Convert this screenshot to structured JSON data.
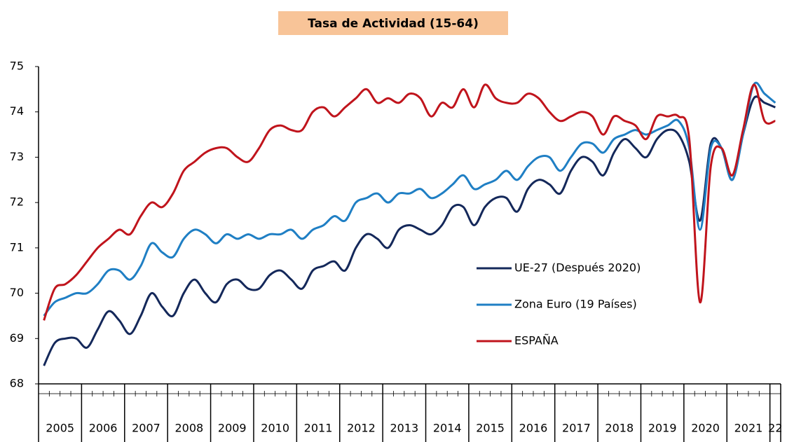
{
  "chart_data": {
    "type": "line",
    "title": "Tasa de Actividad (15-64)",
    "categories": [
      "2005",
      null,
      null,
      null,
      "2006",
      null,
      null,
      null,
      "2007",
      null,
      null,
      null,
      "2008",
      null,
      null,
      null,
      "2009",
      null,
      null,
      null,
      "2010",
      null,
      null,
      null,
      "2011",
      null,
      null,
      null,
      "2012",
      null,
      null,
      null,
      "2013",
      null,
      null,
      null,
      "2014",
      null,
      null,
      null,
      "2015",
      null,
      null,
      null,
      "2016",
      null,
      null,
      null,
      "2017",
      null,
      null,
      null,
      "2018",
      null,
      null,
      null,
      "2019",
      null,
      null,
      null,
      "2020",
      null,
      null,
      null,
      "2021",
      null,
      null,
      null,
      "22"
    ],
    "series": [
      {
        "name": "UE-27 (Después 2020)",
        "color": "#14285a",
        "values": [
          68.4,
          68.9,
          69.0,
          69.0,
          68.8,
          69.2,
          69.6,
          69.4,
          69.1,
          69.5,
          70.0,
          69.7,
          69.5,
          70.0,
          70.3,
          70.0,
          69.8,
          70.2,
          70.3,
          70.1,
          70.1,
          70.4,
          70.5,
          70.3,
          70.1,
          70.5,
          70.6,
          70.7,
          70.5,
          71.0,
          71.3,
          71.2,
          71.0,
          71.4,
          71.5,
          71.4,
          71.3,
          71.5,
          71.9,
          71.9,
          71.5,
          71.9,
          72.1,
          72.1,
          71.8,
          72.3,
          72.5,
          72.4,
          72.2,
          72.7,
          73.0,
          72.9,
          72.6,
          73.1,
          73.4,
          73.2,
          73.0,
          73.4,
          73.6,
          73.5,
          72.9,
          71.6,
          73.3,
          73.2,
          72.5,
          73.5,
          74.3,
          74.2,
          74.1
        ]
      },
      {
        "name": "Zona Euro (19 Países)",
        "color": "#1f7fc4",
        "values": [
          69.5,
          69.8,
          69.9,
          70.0,
          70.0,
          70.2,
          70.5,
          70.5,
          70.3,
          70.6,
          71.1,
          70.9,
          70.8,
          71.2,
          71.4,
          71.3,
          71.1,
          71.3,
          71.2,
          71.3,
          71.2,
          71.3,
          71.3,
          71.4,
          71.2,
          71.4,
          71.5,
          71.7,
          71.6,
          72.0,
          72.1,
          72.2,
          72.0,
          72.2,
          72.2,
          72.3,
          72.1,
          72.2,
          72.4,
          72.6,
          72.3,
          72.4,
          72.5,
          72.7,
          72.5,
          72.8,
          73.0,
          73.0,
          72.7,
          73.0,
          73.3,
          73.3,
          73.1,
          73.4,
          73.5,
          73.6,
          73.5,
          73.6,
          73.7,
          73.8,
          73.2,
          71.4,
          73.2,
          73.2,
          72.5,
          73.5,
          74.6,
          74.4,
          74.2
        ]
      },
      {
        "name": "ESPAÑA",
        "color": "#c0141c",
        "values": [
          69.4,
          70.1,
          70.2,
          70.4,
          70.7,
          71.0,
          71.2,
          71.4,
          71.3,
          71.7,
          72.0,
          71.9,
          72.2,
          72.7,
          72.9,
          73.1,
          73.2,
          73.2,
          73.0,
          72.9,
          73.2,
          73.6,
          73.7,
          73.6,
          73.6,
          74.0,
          74.1,
          73.9,
          74.1,
          74.3,
          74.5,
          74.2,
          74.3,
          74.2,
          74.4,
          74.3,
          73.9,
          74.2,
          74.1,
          74.5,
          74.1,
          74.6,
          74.3,
          74.2,
          74.2,
          74.4,
          74.3,
          74.0,
          73.8,
          73.9,
          74.0,
          73.9,
          73.5,
          73.9,
          73.8,
          73.7,
          73.4,
          73.9,
          73.9,
          73.9,
          73.4,
          69.8,
          72.8,
          73.2,
          72.6,
          73.6,
          74.6,
          73.8,
          73.8
        ]
      }
    ],
    "ylim": [
      68,
      75
    ],
    "yticks": [
      68,
      69,
      70,
      71,
      72,
      73,
      74,
      75
    ],
    "grid": false
  }
}
